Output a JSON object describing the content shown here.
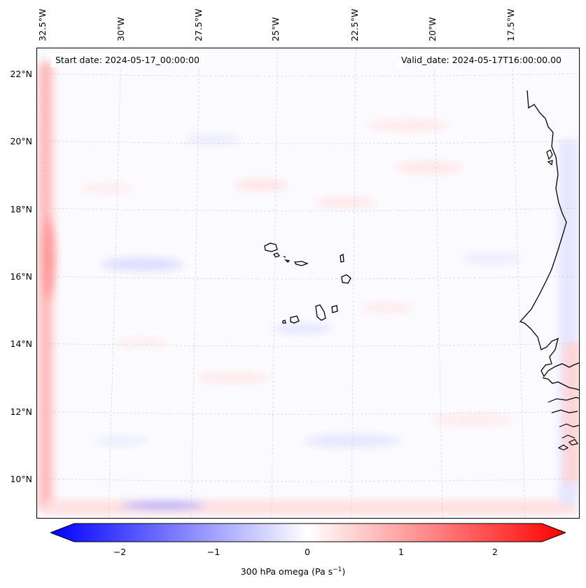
{
  "map": {
    "title_left": "Start date: 2024-05-17_00:00:00",
    "title_right": "Valid_date: 2024-05-17T16:00:00.00",
    "longitude_labels": [
      "32.5°W",
      "30°W",
      "27.5°W",
      "25°W",
      "22.5°W",
      "20°W",
      "17.5°W"
    ],
    "latitude_labels": [
      "22°N",
      "20°N",
      "18°N",
      "16°N",
      "14°N",
      "12°N",
      "10°N"
    ],
    "field": "300 hPa omega",
    "coastline_color": "#000000"
  },
  "colorbar": {
    "label": "300 hPa omega (Pa s",
    "label_exp": "−1",
    "label_close": ")",
    "ticks": [
      "−2",
      "−1",
      "0",
      "1",
      "2"
    ],
    "min_color": "#0000ff",
    "mid_color": "#ffffff",
    "max_color": "#ff0000"
  }
}
